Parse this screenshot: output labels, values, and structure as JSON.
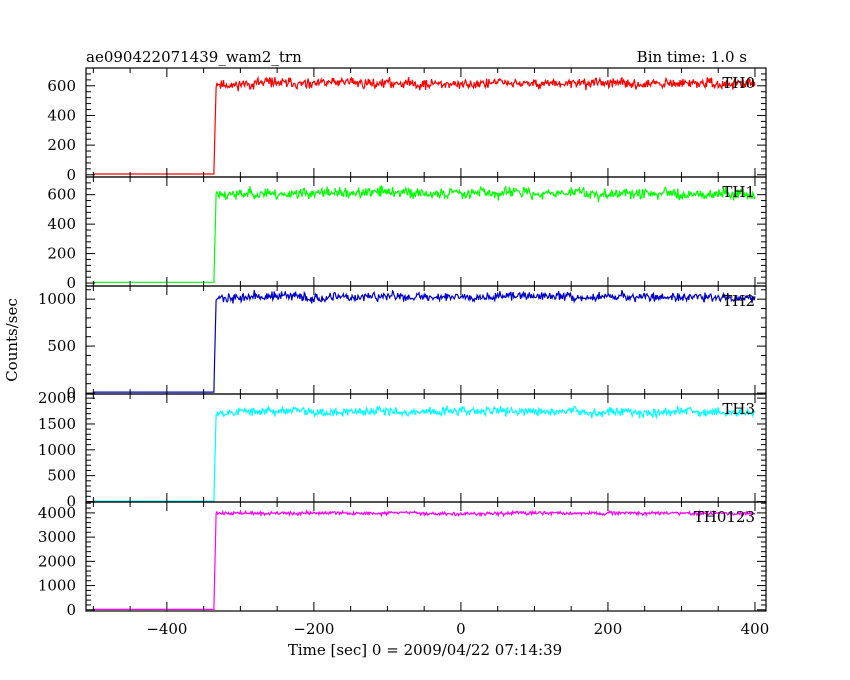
{
  "header": {
    "title": "ae090422071439_wam2_trn",
    "bin_time": "Bin time: 1.0 s"
  },
  "chart_data": {
    "type": "line",
    "xlabel": "Time [sec] 0 = 2009/04/22 07:14:39",
    "ylabel": "Counts/sec",
    "xlim": [
      -510,
      415
    ],
    "x_ticks": [
      -400,
      -200,
      0,
      200,
      400
    ],
    "x_tick_labels": [
      "−400",
      "−200",
      "0",
      "200",
      "400"
    ],
    "trigger_x": -335,
    "panels": [
      {
        "name": "TH0",
        "color": "#ff0000",
        "ylim": [
          -15,
          720
        ],
        "y_ticks": [
          0,
          200,
          400,
          600
        ],
        "y_tick_labels": [
          "0",
          "200",
          "400",
          "600"
        ],
        "pre_level": 5,
        "post_level": 615,
        "noise": 28,
        "seed": 11
      },
      {
        "name": "TH1",
        "color": "#00ff00",
        "ylim": [
          -20,
          720
        ],
        "y_ticks": [
          0,
          200,
          400,
          600
        ],
        "y_tick_labels": [
          "0",
          "200",
          "400",
          "600"
        ],
        "pre_level": 5,
        "post_level": 610,
        "noise": 30,
        "seed": 23
      },
      {
        "name": "TH2",
        "color": "#0000cc",
        "ylim": [
          -10,
          1140
        ],
        "y_ticks": [
          0,
          500,
          1000
        ],
        "y_tick_labels": [
          "0",
          "500",
          "1000"
        ],
        "pre_level": 10,
        "post_level": 1025,
        "noise": 40,
        "seed": 37
      },
      {
        "name": "TH3",
        "color": "#00ffff",
        "ylim": [
          -10,
          2080
        ],
        "y_ticks": [
          0,
          500,
          1000,
          1500,
          2000
        ],
        "y_tick_labels": [
          "0",
          "500",
          "1000",
          "1500",
          "2000"
        ],
        "pre_level": 8,
        "post_level": 1740,
        "noise": 70,
        "seed": 53
      },
      {
        "name": "TH0123",
        "color": "#ff00ff",
        "ylim": [
          -50,
          4450
        ],
        "y_ticks": [
          0,
          1000,
          2000,
          3000,
          4000
        ],
        "y_tick_labels": [
          "0",
          "1000",
          "2000",
          "3000",
          "4000"
        ],
        "pre_level": 15,
        "post_level": 3980,
        "noise": 60,
        "seed": 71
      }
    ]
  }
}
